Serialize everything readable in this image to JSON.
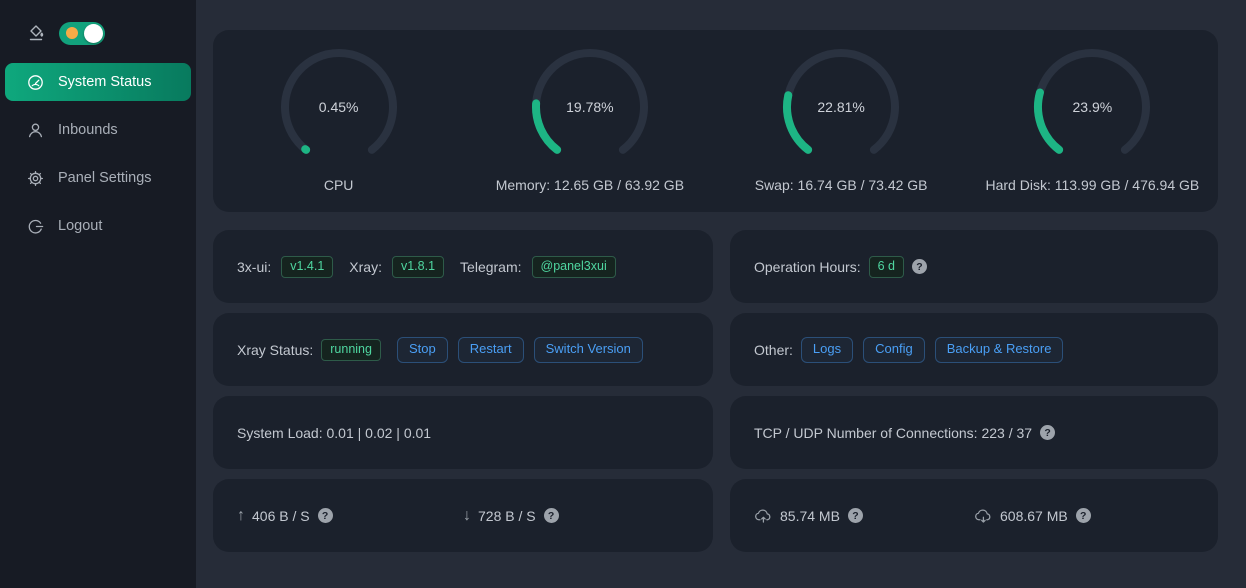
{
  "colors": {
    "page_bg": "#262c38",
    "sidebar_bg": "#171b24",
    "card_bg": "#1b212c",
    "gauge_green": "#1db584",
    "gauge_track": "#2a3240",
    "active_menu_gradient": [
      "#0fa87d",
      "#087a5e"
    ],
    "tag_green_text": "#4fd6a0",
    "button_blue_text": "#4a9ff5",
    "toggle_green": "#12a27c",
    "toggle_sun_orange": "#f6ab47"
  },
  "sidebar": {
    "items": [
      {
        "label": "System Status",
        "active": true
      },
      {
        "label": "Inbounds",
        "active": false
      },
      {
        "label": "Panel Settings",
        "active": false
      },
      {
        "label": "Logout",
        "active": false
      }
    ]
  },
  "gauges": [
    {
      "percent": 0.45,
      "percent_label": "0.45%",
      "label": "CPU"
    },
    {
      "percent": 19.78,
      "percent_label": "19.78%",
      "label": "Memory: 12.65 GB / 63.92 GB"
    },
    {
      "percent": 22.81,
      "percent_label": "22.81%",
      "label": "Swap: 16.74 GB / 73.42 GB"
    },
    {
      "percent": 23.9,
      "percent_label": "23.9%",
      "label": "Hard Disk: 113.99 GB / 476.94 GB"
    }
  ],
  "version_card": {
    "ui_label": "3x-ui:",
    "ui_version": "v1.4.1",
    "xray_label": "Xray:",
    "xray_version": "v1.8.1",
    "telegram_label": "Telegram:",
    "telegram_handle": "@panel3xui"
  },
  "operation_card": {
    "label": "Operation Hours:",
    "value": "6 d"
  },
  "xray_status_card": {
    "label": "Xray Status:",
    "status": "running",
    "buttons": [
      "Stop",
      "Restart",
      "Switch Version"
    ]
  },
  "other_card": {
    "label": "Other:",
    "buttons": [
      "Logs",
      "Config",
      "Backup & Restore"
    ]
  },
  "system_load_card": {
    "text": "System Load: 0.01 | 0.02 | 0.01"
  },
  "connections_card": {
    "text": "TCP / UDP Number of Connections: 223 / 37"
  },
  "net_speed_card": {
    "upload": "406 B / S",
    "download": "728 B / S"
  },
  "net_total_card": {
    "upload": "85.74 MB",
    "download": "608.67 MB"
  },
  "misc": {
    "question_mark": "?"
  }
}
